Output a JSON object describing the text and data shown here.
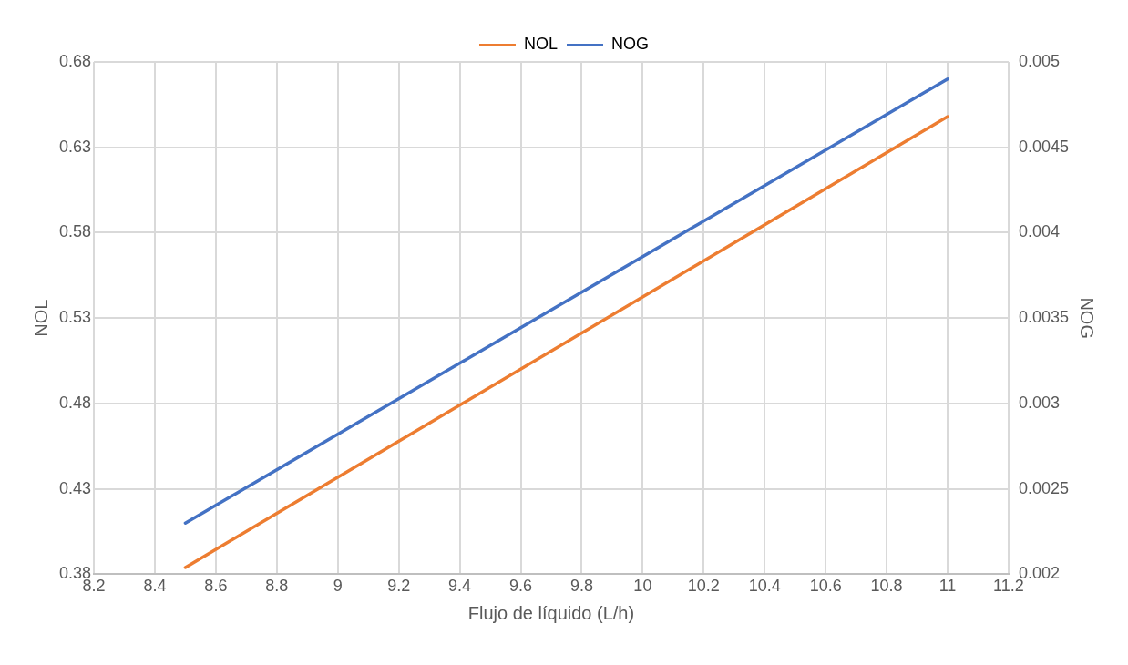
{
  "chart_data": {
    "type": "line",
    "xlabel": "Flujo de líquido (L/h)",
    "ylabel": "NOL",
    "y2label": "NOG",
    "legend": "top",
    "grid": true,
    "marker": "none",
    "line_style": "solid",
    "xlim": [
      8.2,
      11.2
    ],
    "xticks": [
      8.2,
      8.4,
      8.6,
      8.8,
      9,
      9.2,
      9.4,
      9.6,
      9.8,
      10,
      10.2,
      10.4,
      10.6,
      10.8,
      11,
      11.2
    ],
    "ylim": [
      0.38,
      0.68
    ],
    "yticks": [
      0.38,
      0.43,
      0.48,
      0.53,
      0.58,
      0.63,
      0.68
    ],
    "y2lim": [
      0.002,
      0.005
    ],
    "y2ticks": [
      0.002,
      0.0025,
      0.003,
      0.0035,
      0.004,
      0.0045,
      0.005
    ],
    "x": [
      8.5,
      11
    ],
    "series": [
      {
        "name": "NOL",
        "color": "#ed7d31",
        "values": [
          0.384,
          0.648
        ]
      },
      {
        "name": "NOG",
        "color": "#4472c4",
        "values": [
          0.0023,
          0.0049
        ],
        "axis": "y2"
      }
    ]
  }
}
